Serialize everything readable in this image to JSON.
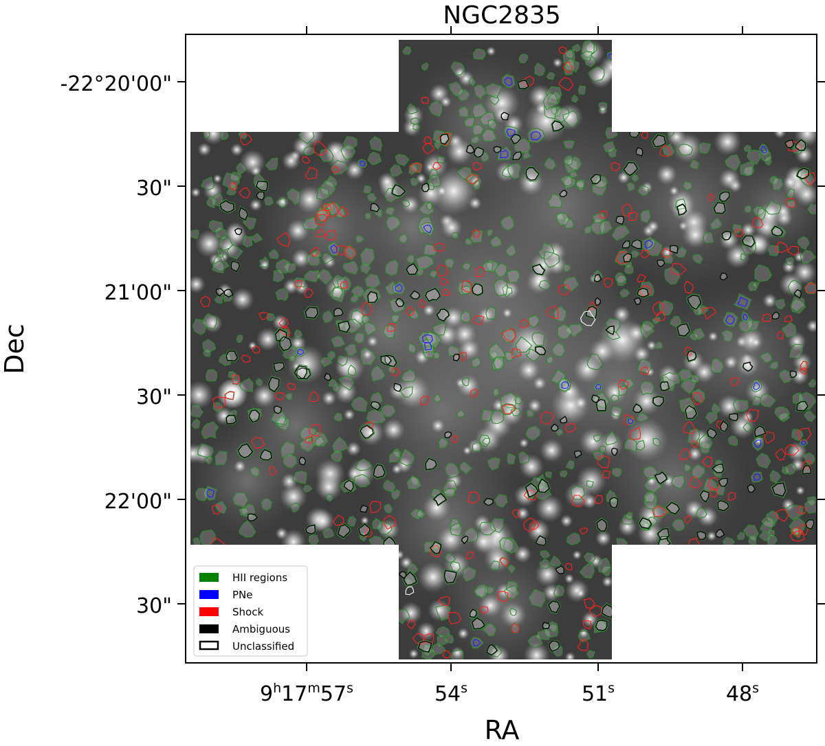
{
  "chart_data": {
    "type": "image-with-regions",
    "title": "NGC2835",
    "xlabel": "RA",
    "ylabel": "Dec",
    "x_ticks": [
      {
        "label_main": "9",
        "sup1": "h",
        "mid1": "17",
        "sup2": "m",
        "mid2": "57",
        "sup3": "s"
      },
      {
        "label_main": "54",
        "sup3": "s"
      },
      {
        "label_main": "51",
        "sup3": "s"
      },
      {
        "label_main": "48",
        "sup3": "s"
      }
    ],
    "y_ticks": [
      "-22°20'00\"",
      "30\"",
      "21'00\"",
      "30\"",
      "22'00\"",
      "30\""
    ],
    "legend": {
      "placement": "lower-left",
      "entries": [
        {
          "label": "HII regions",
          "color": "#008000"
        },
        {
          "label": "PNe",
          "color": "#0000ff"
        },
        {
          "label": "Shock",
          "color": "#ff0000"
        },
        {
          "label": "Ambiguous",
          "color": "#000000"
        },
        {
          "label": "Unclassified",
          "color": "#ffffff"
        }
      ]
    },
    "region_colors": {
      "hii": "#2e8b2e",
      "pne": "#1f1fff",
      "shock": "#ff2020",
      "ambiguous": "#000000",
      "unclassified": "#ffffff"
    },
    "grid": false
  }
}
